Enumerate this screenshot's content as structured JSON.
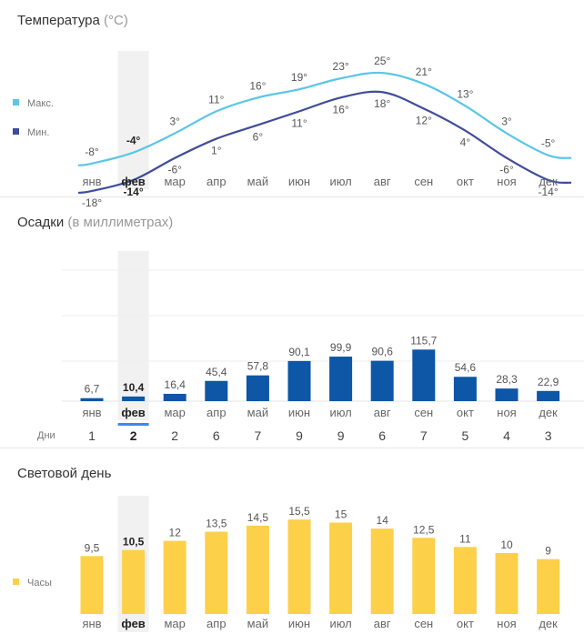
{
  "months": [
    "янв",
    "фев",
    "мар",
    "апр",
    "май",
    "июн",
    "июл",
    "авг",
    "сен",
    "окт",
    "ноя",
    "дек"
  ],
  "selected_month": "фев",
  "temperature": {
    "title": "Температура",
    "unit": "(°C)",
    "legend_max": "Макс.",
    "legend_min": "Мин.",
    "max_color": "#5bc6e8",
    "min_color": "#3f4d99",
    "max_labels": [
      "-8°",
      "-4°",
      "3°",
      "11°",
      "16°",
      "19°",
      "23°",
      "25°",
      "21°",
      "13°",
      "3°",
      "-5°"
    ],
    "min_labels": [
      "-18°",
      "-14°",
      "-6°",
      "1°",
      "6°",
      "11°",
      "16°",
      "18°",
      "12°",
      "4°",
      "-6°",
      "-14°"
    ]
  },
  "precipitation": {
    "title": "Осадки",
    "unit": "(в миллиметрах)",
    "bar_color": "#0e56a6",
    "value_labels": [
      "6,7",
      "10,4",
      "16,4",
      "45,4",
      "57,8",
      "90,1",
      "99,9",
      "90,6",
      "115,7",
      "54,6",
      "28,3",
      "22,9"
    ],
    "days_label": "Дни",
    "days": [
      "1",
      "2",
      "2",
      "6",
      "7",
      "9",
      "9",
      "6",
      "7",
      "5",
      "4",
      "3"
    ]
  },
  "daylight": {
    "title": "Световой день",
    "legend": "Часы",
    "bar_color": "#fdd04a",
    "value_labels": [
      "9,5",
      "10,5",
      "12",
      "13,5",
      "14,5",
      "15,5",
      "15",
      "14",
      "12,5",
      "11",
      "10",
      "9"
    ]
  },
  "chart_data": [
    {
      "type": "line",
      "title": "Температура (°C)",
      "categories": [
        "янв",
        "фев",
        "мар",
        "апр",
        "май",
        "июн",
        "июл",
        "авг",
        "сен",
        "окт",
        "ноя",
        "дек"
      ],
      "series": [
        {
          "name": "Макс.",
          "values": [
            -8,
            -4,
            3,
            11,
            16,
            19,
            23,
            25,
            21,
            13,
            3,
            -5
          ]
        },
        {
          "name": "Мин.",
          "values": [
            -18,
            -14,
            -6,
            1,
            6,
            11,
            16,
            18,
            12,
            4,
            -6,
            -14
          ]
        }
      ]
    },
    {
      "type": "bar",
      "title": "Осадки (в миллиметрах)",
      "categories": [
        "янв",
        "фев",
        "мар",
        "апр",
        "май",
        "июн",
        "июл",
        "авг",
        "сен",
        "окт",
        "ноя",
        "дек"
      ],
      "values": [
        6.7,
        10.4,
        16.4,
        45.4,
        57.8,
        90.1,
        99.9,
        90.6,
        115.7,
        54.6,
        28.3,
        22.9
      ],
      "days": [
        1,
        2,
        2,
        6,
        7,
        9,
        9,
        6,
        7,
        5,
        4,
        3
      ]
    },
    {
      "type": "bar",
      "title": "Световой день",
      "categories": [
        "янв",
        "фев",
        "мар",
        "апр",
        "май",
        "июн",
        "июл",
        "авг",
        "сен",
        "окт",
        "ноя",
        "дек"
      ],
      "series": [
        {
          "name": "Часы",
          "values": [
            9.5,
            10.5,
            12,
            13.5,
            14.5,
            15.5,
            15,
            14,
            12.5,
            11,
            10,
            9
          ]
        }
      ]
    }
  ]
}
